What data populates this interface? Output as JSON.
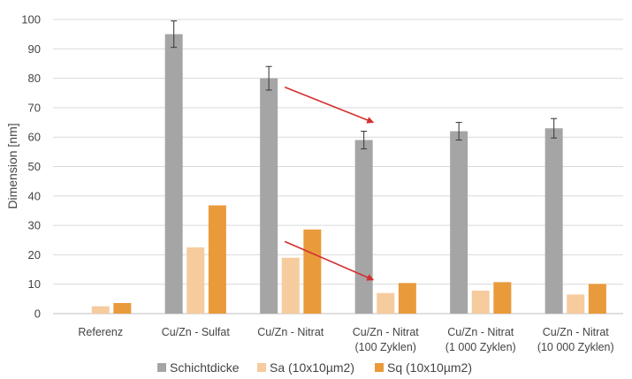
{
  "chart_data": {
    "type": "bar",
    "title": "",
    "xlabel": "",
    "ylabel": "Dimension [nm]",
    "ylim": [
      0,
      100
    ],
    "yticks": [
      0,
      10,
      20,
      30,
      40,
      50,
      60,
      70,
      80,
      90,
      100
    ],
    "grid": true,
    "legend_position": "bottom",
    "categories": [
      [
        "Referenz"
      ],
      [
        "Cu/Zn - Sulfat"
      ],
      [
        "Cu/Zn - Nitrat"
      ],
      [
        "Cu/Zn - Nitrat",
        "(100 Zyklen)"
      ],
      [
        "Cu/Zn - Nitrat",
        "(1 000 Zyklen)"
      ],
      [
        "Cu/Zn - Nitrat",
        "(10 000 Zyklen)"
      ]
    ],
    "series": [
      {
        "name": "Schichtdicke",
        "color": "#a5a5a5",
        "values": [
          0,
          95,
          80,
          59,
          62,
          63
        ],
        "errors": [
          null,
          4.5,
          4,
          3,
          3,
          3.3
        ]
      },
      {
        "name": "Sa (10x10µm2)",
        "color": "#f6cb9e",
        "values": [
          2.5,
          22.5,
          19,
          7,
          7.8,
          6.5
        ]
      },
      {
        "name": "Sq (10x10µm2)",
        "color": "#e99a3b",
        "values": [
          3.6,
          36.8,
          28.6,
          10.4,
          10.7,
          10.1
        ]
      }
    ],
    "annotations": [
      {
        "type": "arrow",
        "color": "#d32f2f",
        "from": {
          "category": 2,
          "value": 77
        },
        "to": {
          "category": 3,
          "value": 65
        }
      },
      {
        "type": "arrow",
        "color": "#d32f2f",
        "from": {
          "category": 2,
          "value": 24.5
        },
        "to": {
          "category": 3,
          "value": 11.5
        }
      }
    ]
  }
}
